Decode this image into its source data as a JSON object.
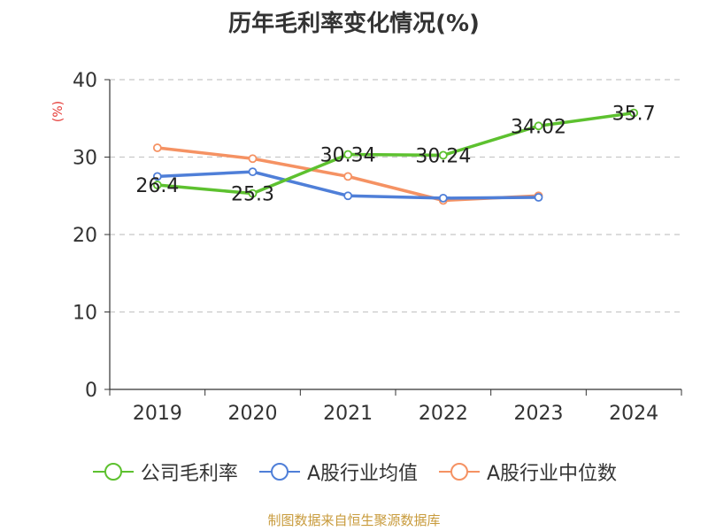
{
  "title": "历年毛利率变化情况(%)",
  "source_text": "制图数据来自恒生聚源数据库",
  "chart_data": {
    "type": "line",
    "title": "历年毛利率变化情况(%)",
    "ylabel": "(%)",
    "ylim": [
      0,
      40
    ],
    "yticks": [
      0,
      10,
      20,
      30,
      40
    ],
    "categories": [
      "2019",
      "2020",
      "2021",
      "2022",
      "2023",
      "2024"
    ],
    "grid": true,
    "legend_position": "bottom",
    "series": [
      {
        "name": "公司毛利率",
        "color": "#5dc12f",
        "labels": true,
        "values": [
          26.4,
          25.3,
          30.34,
          30.24,
          34.02,
          35.7
        ]
      },
      {
        "name": "A股行业均值",
        "color": "#4f7fd8",
        "labels": false,
        "values": [
          27.5,
          28.1,
          25.0,
          24.7,
          24.8,
          null
        ]
      },
      {
        "name": "A股行业中位数",
        "color": "#f59263",
        "labels": false,
        "values": [
          31.2,
          29.8,
          27.5,
          24.4,
          25.0,
          null
        ]
      }
    ]
  }
}
